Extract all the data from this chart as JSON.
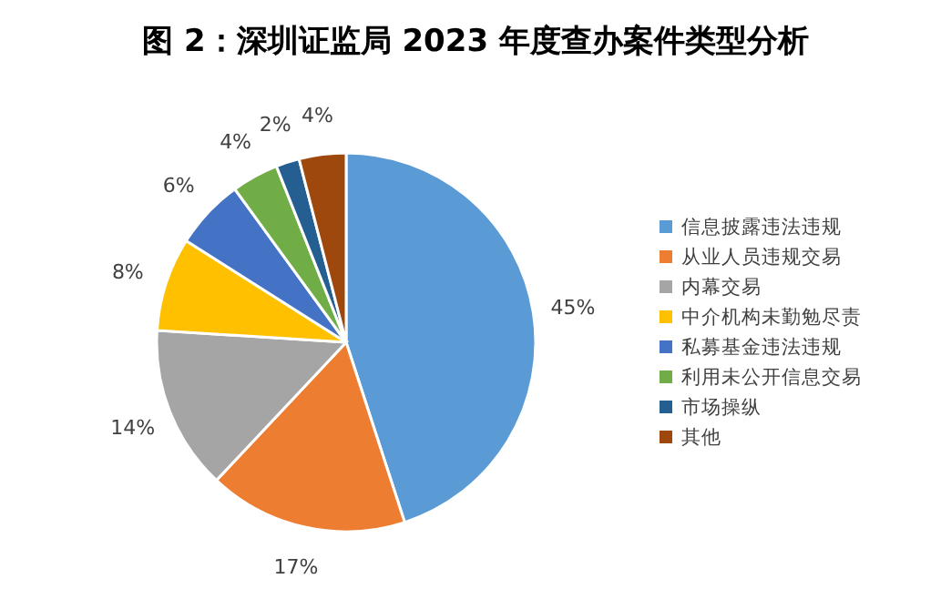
{
  "chart_data": {
    "type": "pie",
    "title": "图 2：深圳证监局 2023 年度查办案件类型分析",
    "categories": [
      "信息披露违法违规",
      "从业人员违规交易",
      "内幕交易",
      "中介机构未勤勉尽责",
      "私募基金违法违规",
      "利用未公开信息交易",
      "市场操纵",
      "其他"
    ],
    "values": [
      45,
      17,
      14,
      8,
      6,
      4,
      2,
      4
    ],
    "colors": [
      "#5b9bd5",
      "#ed7d31",
      "#a5a5a5",
      "#ffc000",
      "#4472c4",
      "#70ad47",
      "#255e91",
      "#9e480e"
    ],
    "value_labels": [
      "45%",
      "17%",
      "14%",
      "8%",
      "6%",
      "4%",
      "2%",
      "4%"
    ],
    "legend": "right"
  }
}
